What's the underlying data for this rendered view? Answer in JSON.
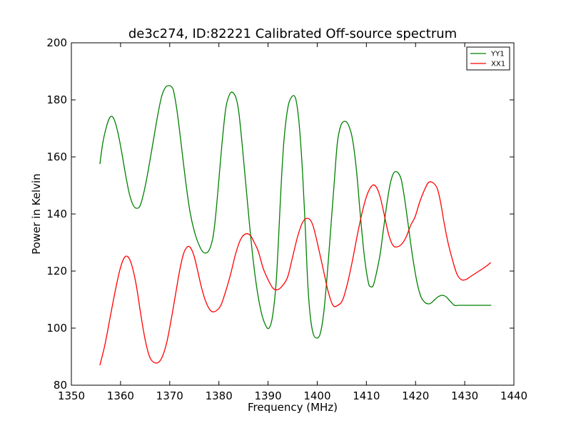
{
  "chart_data": {
    "type": "line",
    "title": "de3c274, ID:82221 Calibrated Off-source spectrum",
    "xlabel": "Frequency (MHz)",
    "ylabel": "Power in Kelvin",
    "xlim": [
      1350,
      1440
    ],
    "ylim": [
      80,
      200
    ],
    "xticks": [
      1350,
      1360,
      1370,
      1380,
      1390,
      1400,
      1410,
      1420,
      1430,
      1440
    ],
    "yticks": [
      80,
      100,
      120,
      140,
      160,
      180,
      200
    ],
    "grid": false,
    "legend": "top-right",
    "series": [
      {
        "name": "YY1",
        "color": "#008000",
        "x": [
          1355.8,
          1356.4,
          1357.2,
          1357.9,
          1358.6,
          1359.4,
          1360.2,
          1361.0,
          1361.8,
          1362.6,
          1363.3,
          1364.0,
          1364.8,
          1365.6,
          1366.6,
          1367.6,
          1368.4,
          1369.2,
          1369.9,
          1370.4,
          1370.8,
          1371.5,
          1372.3,
          1373.2,
          1374.1,
          1375.0,
          1376.0,
          1376.9,
          1377.9,
          1378.7,
          1379.2,
          1379.8,
          1380.6,
          1381.4,
          1382.2,
          1382.9,
          1383.6,
          1384.1,
          1384.7,
          1385.5,
          1386.3,
          1387.1,
          1387.9,
          1388.7,
          1389.5,
          1390.2,
          1390.9,
          1391.6,
          1392.1,
          1392.6,
          1393.2,
          1394.0,
          1394.8,
          1395.6,
          1396.3,
          1397.0,
          1397.6,
          1398.1,
          1398.6,
          1399.2,
          1399.9,
          1400.6,
          1401.3,
          1402.0,
          1402.8,
          1403.5,
          1404.1,
          1404.8,
          1405.6,
          1406.4,
          1407.2,
          1408.0,
          1408.8,
          1409.6,
          1410.4,
          1410.9,
          1411.4,
          1412.0,
          1412.8,
          1413.5,
          1414.2,
          1414.9,
          1415.6,
          1416.4,
          1417.1,
          1417.8,
          1418.6,
          1419.4,
          1420.3,
          1421.1,
          1421.9,
          1422.7,
          1423.3,
          1423.9,
          1424.6,
          1425.4,
          1426.2,
          1427.0,
          1427.9,
          1428.7,
          1429.5,
          1430.3,
          1431.1,
          1432.0,
          1432.9,
          1433.6,
          1434.3,
          1434.9,
          1435.4
        ],
        "y": [
          157.5,
          165,
          171,
          174,
          173.5,
          169,
          162,
          154,
          147,
          143,
          142,
          143,
          148,
          155,
          165,
          175,
          181.5,
          184.5,
          185,
          184.5,
          183,
          176,
          165,
          152,
          141,
          134,
          129,
          126.5,
          127,
          131,
          137,
          148,
          164,
          177,
          182,
          182.5,
          180,
          175,
          165,
          150,
          135,
          122,
          112,
          105,
          101,
          100,
          104,
          115,
          130,
          148,
          165,
          177,
          181,
          180.5,
          172,
          155,
          134,
          115,
          104,
          98,
          96.5,
          98,
          105,
          118,
          136,
          152,
          165,
          171,
          172.5,
          171,
          166,
          155,
          139,
          125,
          116,
          114.5,
          115,
          119,
          126,
          135,
          144,
          151,
          154.5,
          154.5,
          152,
          145,
          135,
          125,
          116,
          111,
          109,
          108.5,
          109,
          110,
          111,
          111.5,
          111,
          109.5,
          108,
          108,
          108,
          108,
          108,
          108,
          108,
          108,
          108,
          108,
          108
        ]
      },
      {
        "name": "XX1",
        "color": "#ff0000",
        "x": [
          1355.8,
          1356.8,
          1357.8,
          1358.8,
          1359.8,
          1360.7,
          1361.5,
          1362.3,
          1363.2,
          1364.1,
          1365.0,
          1365.9,
          1366.8,
          1367.7,
          1368.5,
          1369.4,
          1370.3,
          1371.2,
          1372.0,
          1372.8,
          1373.6,
          1374.3,
          1375.0,
          1375.7,
          1376.5,
          1377.4,
          1378.4,
          1379.4,
          1380.4,
          1381.4,
          1382.4,
          1383.4,
          1384.4,
          1385.4,
          1386.4,
          1387.2,
          1388.0,
          1389.0,
          1390.0,
          1391.0,
          1392.0,
          1393.0,
          1394.0,
          1395.0,
          1396.0,
          1397.0,
          1398.0,
          1398.9,
          1399.6,
          1400.4,
          1401.3,
          1402.2,
          1403.2,
          1404.2,
          1405.2,
          1406.2,
          1407.2,
          1408.2,
          1409.2,
          1410.2,
          1411.2,
          1412.0,
          1412.8,
          1413.6,
          1414.5,
          1415.4,
          1416.3,
          1417.2,
          1418.1,
          1419.0,
          1419.9,
          1420.8,
          1421.7,
          1422.6,
          1423.5,
          1424.4,
          1425.1,
          1425.8,
          1426.6,
          1427.5,
          1428.4,
          1429.3,
          1430.2,
          1431.1,
          1432.0,
          1432.9,
          1433.8,
          1434.6,
          1435.3
        ],
        "y": [
          87,
          94,
          103,
          112,
          120,
          124.5,
          125,
          122,
          115,
          105,
          96,
          90,
          88,
          88,
          90,
          95,
          103,
          112,
          120,
          126,
          128.5,
          128,
          125,
          120,
          114,
          109,
          106,
          106,
          108,
          113,
          119,
          126,
          131,
          133,
          132.5,
          130,
          127,
          121,
          117,
          114,
          113.5,
          115,
          118,
          125,
          132,
          137,
          138.5,
          137,
          133,
          127,
          120,
          113,
          108,
          108,
          110,
          116,
          124,
          133,
          141,
          147,
          150,
          149.5,
          146,
          140,
          133,
          129,
          128.5,
          129.5,
          132,
          136,
          139,
          144,
          148,
          151,
          151,
          149,
          144,
          137,
          130,
          124,
          119,
          117,
          117,
          118,
          119,
          120,
          121,
          122,
          123
        ]
      }
    ]
  }
}
